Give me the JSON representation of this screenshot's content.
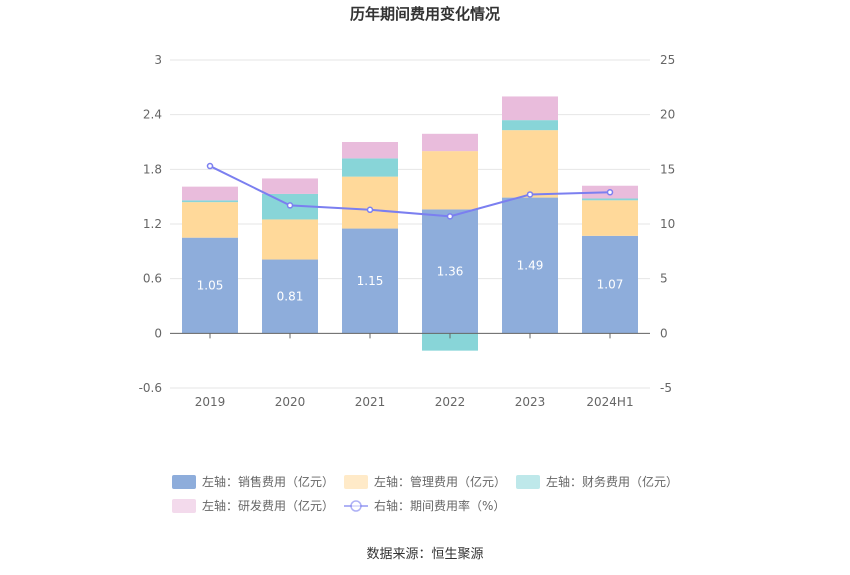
{
  "chart_data": {
    "type": "bar",
    "title": "历年期间费用变化情况",
    "categories": [
      "2019",
      "2020",
      "2021",
      "2022",
      "2023",
      "2024H1"
    ],
    "left_axis": {
      "ylim": [
        -0.6,
        3
      ],
      "ticks": [
        "-0.6",
        "0",
        "0.6",
        "1.2",
        "1.8",
        "2.4",
        "3"
      ]
    },
    "right_axis": {
      "ylim": [
        -5,
        25
      ],
      "ticks": [
        "-5",
        "0",
        "5",
        "10",
        "15",
        "20",
        "25"
      ]
    },
    "stacked_series": [
      {
        "name": "左轴：销售费用（亿元）",
        "color": "#8eaddb",
        "values": [
          1.05,
          0.81,
          1.15,
          1.36,
          1.49,
          1.07
        ],
        "labels": [
          "1.05",
          "0.81",
          "1.15",
          "1.36",
          "1.49",
          "1.07"
        ]
      },
      {
        "name": "左轴：管理费用（亿元）",
        "color": "#ffd99a",
        "values": [
          0.39,
          0.44,
          0.57,
          0.64,
          0.74,
          0.39
        ]
      },
      {
        "name": "左轴：财务费用（亿元）",
        "color": "#88d5d8",
        "values": [
          0.02,
          0.28,
          0.2,
          -0.19,
          0.11,
          0.02
        ]
      },
      {
        "name": "左轴：研发费用（亿元）",
        "color": "#e9bcdc",
        "values": [
          0.15,
          0.17,
          0.18,
          0.19,
          0.26,
          0.14
        ]
      }
    ],
    "line_series": [
      {
        "name": "右轴：期间费用率（%）",
        "color": "#7b7ff0",
        "values": [
          15.3,
          11.7,
          11.3,
          10.7,
          12.7,
          12.9
        ]
      }
    ],
    "grid": true,
    "legend_position": "bottom"
  },
  "source_text": "数据来源：恒生聚源"
}
